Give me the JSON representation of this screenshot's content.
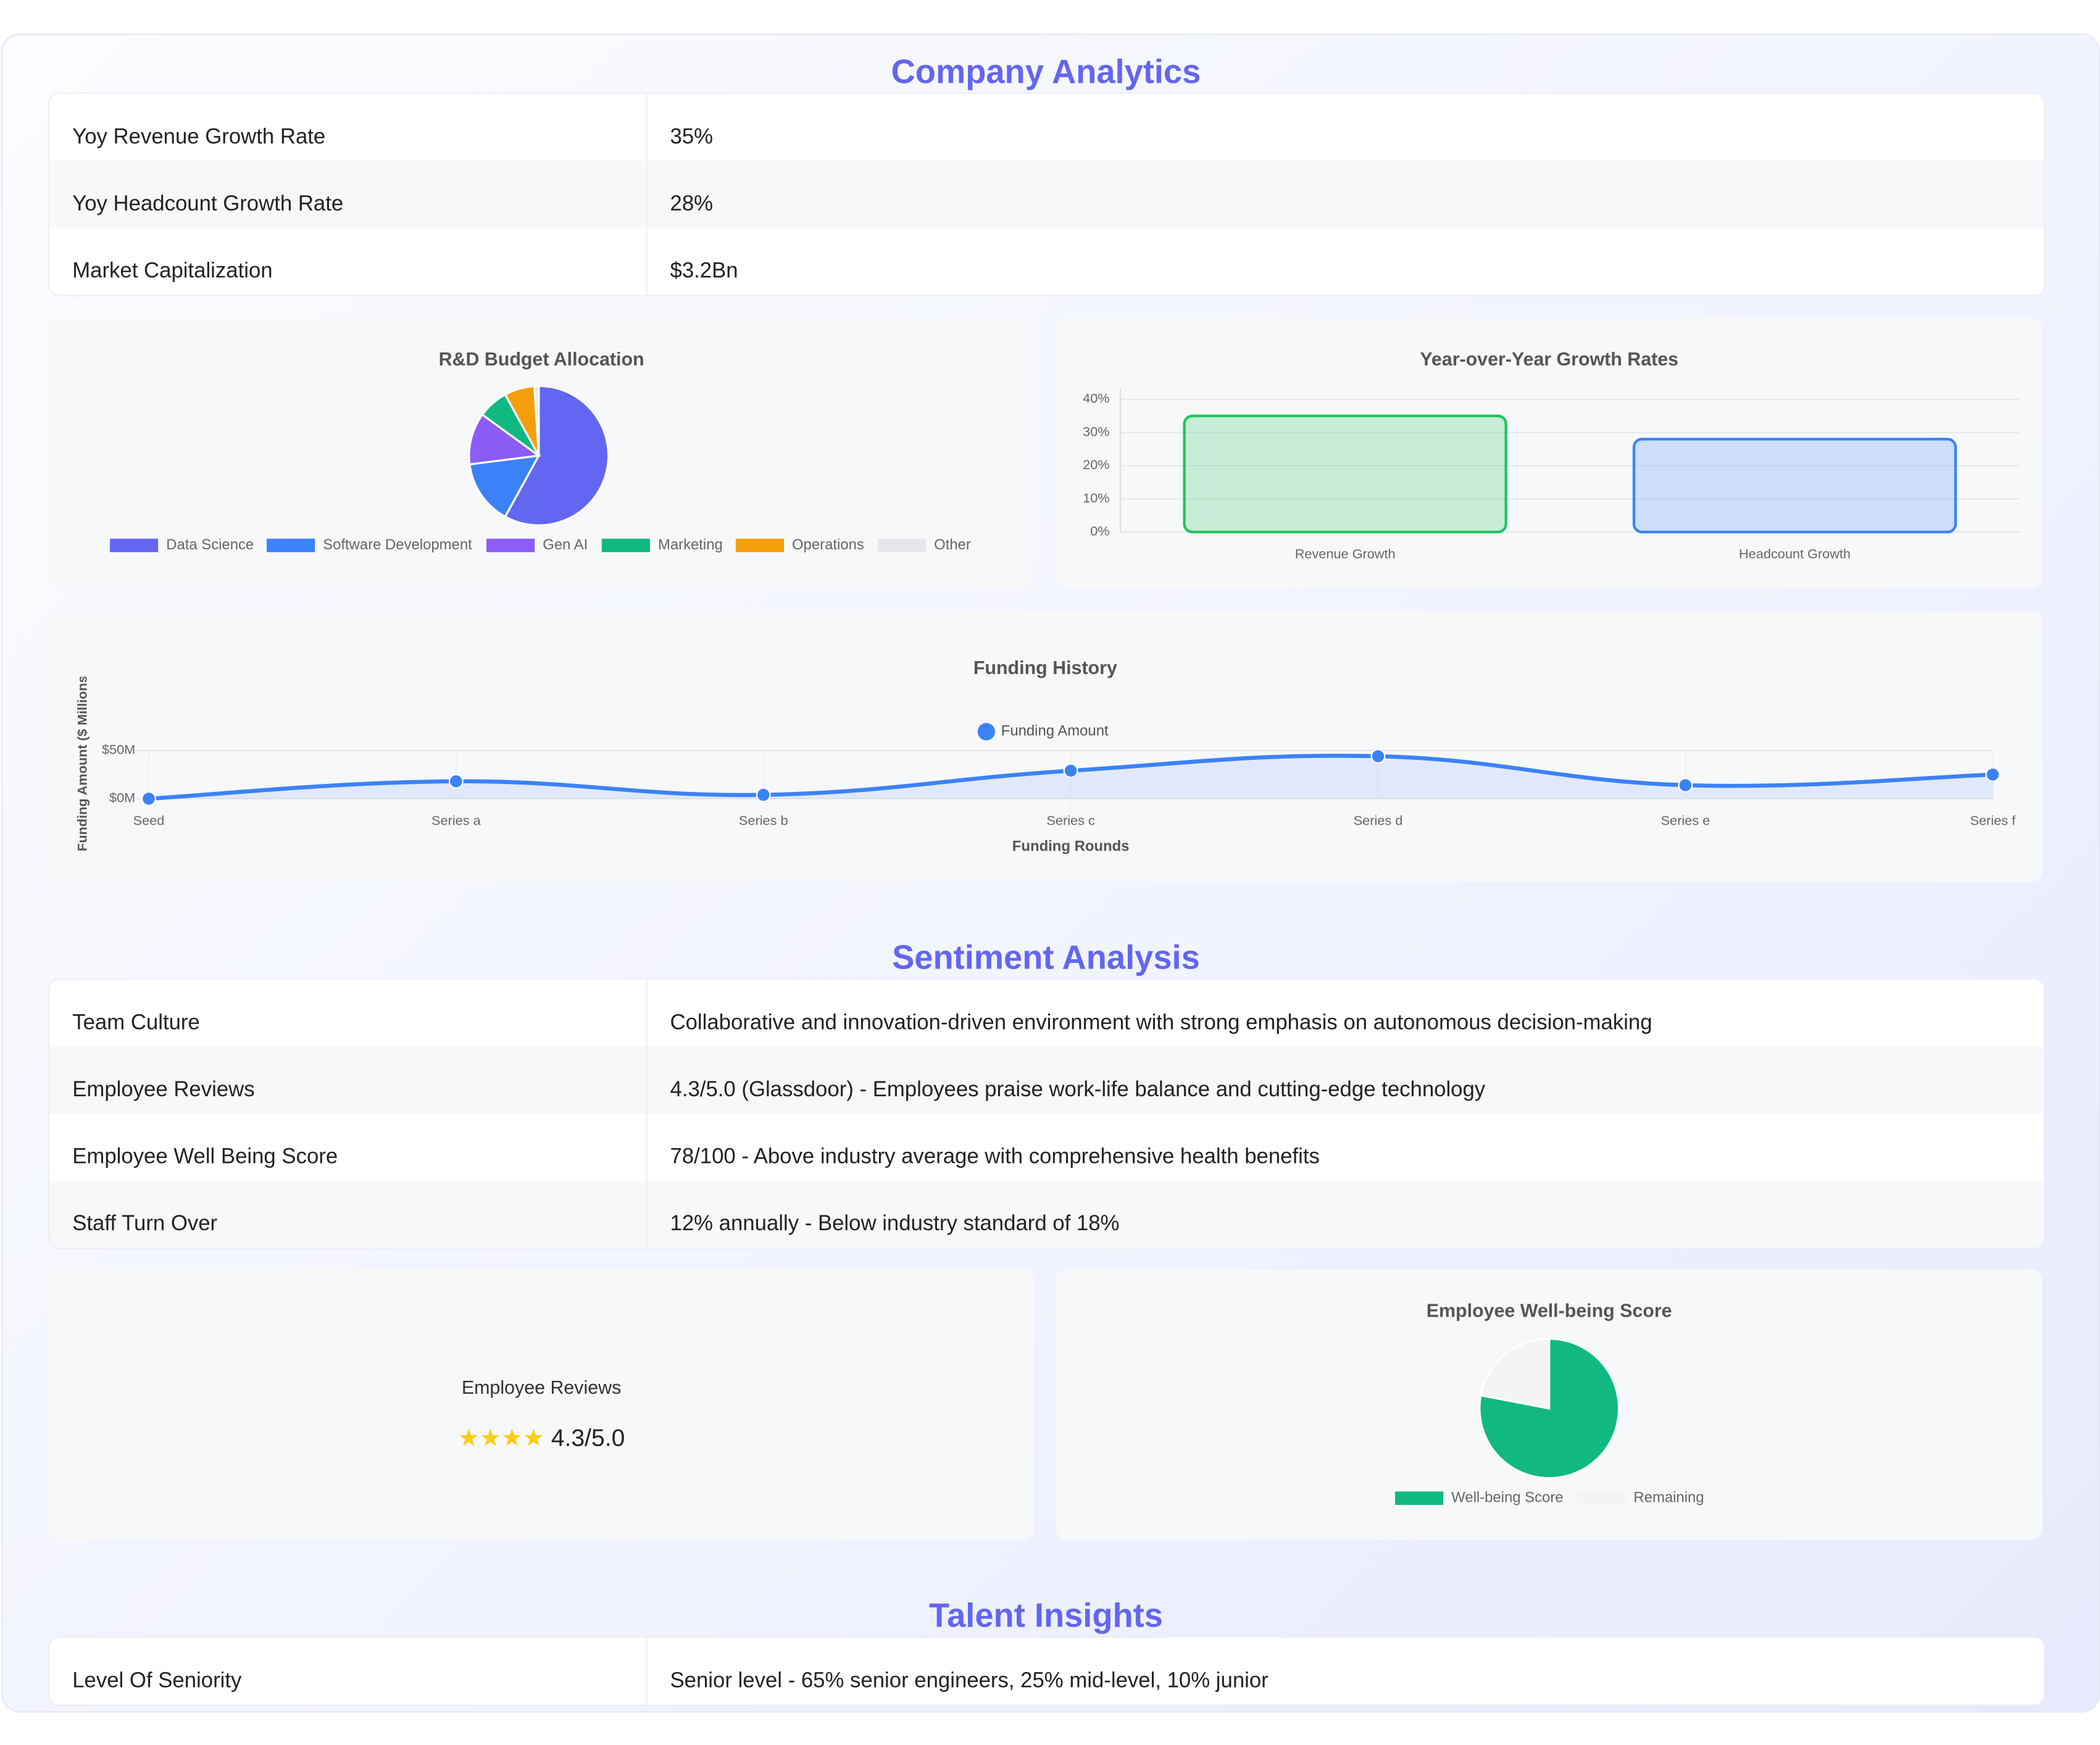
{
  "sections": [
    {
      "title": "Company Analytics",
      "rows": [
        [
          "Yoy Revenue Growth Rate",
          "35%"
        ],
        [
          "Yoy Headcount Growth Rate",
          "28%"
        ],
        [
          "Market Capitalization",
          "$3.2Bn"
        ]
      ]
    },
    {
      "title": "Sentiment Analysis",
      "rows": [
        [
          "Team Culture",
          "Collaborative and innovation-driven environment with strong emphasis on autonomous decision-making"
        ],
        [
          "Employee Reviews",
          "4.3/5.0 (Glassdoor) - Employees praise work-life balance and cutting-edge technology"
        ],
        [
          "Employee Well Being Score",
          "78/100 - Above industry average with comprehensive health benefits"
        ],
        [
          "Staff Turn Over",
          "12% annually - Below industry standard of 18%"
        ]
      ]
    },
    {
      "title": "Talent Insights",
      "rows": [
        [
          "Level Of Seniority",
          "Senior level - 65% senior engineers, 25% mid-level, 10% junior"
        ]
      ]
    }
  ],
  "reviews_card": {
    "title": "Employee Reviews",
    "stars": "★★★★",
    "score": "4.3/5.0"
  },
  "chart_data": [
    {
      "type": "pie",
      "title": "R&D Budget Allocation",
      "categories": [
        "Data Science",
        "Software Development",
        "Gen AI",
        "Marketing",
        "Operations",
        "Other"
      ],
      "values": [
        58,
        15,
        12,
        7,
        7,
        1
      ],
      "colors": [
        "#6366f1",
        "#3b82f6",
        "#8b5cf6",
        "#10b981",
        "#f59e0b",
        "#e5e7eb"
      ]
    },
    {
      "type": "bar",
      "title": "Year-over-Year Growth Rates",
      "categories": [
        "Revenue Growth",
        "Headcount Growth"
      ],
      "values": [
        35,
        28
      ],
      "colors": [
        "#22c55e",
        "#3b82f6"
      ],
      "ylim": [
        0,
        40
      ],
      "yticks": [
        {
          "value": 0,
          "label": "0%"
        },
        {
          "value": 10,
          "label": "10%"
        },
        {
          "value": 20,
          "label": "20%"
        },
        {
          "value": 30,
          "label": "30%"
        },
        {
          "value": 40,
          "label": "40%"
        }
      ],
      "grid": true
    },
    {
      "type": "line",
      "title": "Funding History",
      "x_label": "Funding Rounds",
      "y_label": "Funding Amount ($ Millions)",
      "categories": [
        "Seed",
        "Series a",
        "Series b",
        "Series c",
        "Series d",
        "Series e",
        "Series f"
      ],
      "series": [
        {
          "name": "Funding Amount",
          "color": "#3b82f6",
          "values": [
            0,
            18,
            4,
            29,
            44,
            14,
            25
          ]
        }
      ],
      "ylim": [
        0,
        50
      ],
      "yticks": [
        {
          "value": 0,
          "label": "$0M"
        },
        {
          "value": 50,
          "label": "$50M"
        }
      ],
      "grid": true
    },
    {
      "type": "pie",
      "title": "Employee Well-being Score",
      "categories": [
        "Well-being Score",
        "Remaining"
      ],
      "values": [
        78,
        22
      ],
      "colors": [
        "#10b981",
        "#f3f4f6"
      ]
    }
  ]
}
